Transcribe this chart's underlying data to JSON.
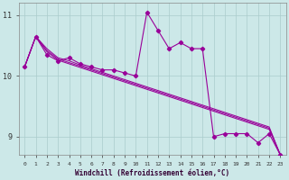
{
  "xlabel": "Windchill (Refroidissement éolien,°C)",
  "background_color": "#cce8e8",
  "line_color": "#990099",
  "grid_color": "#aacccc",
  "x": [
    0,
    1,
    2,
    3,
    4,
    5,
    6,
    7,
    8,
    9,
    10,
    11,
    12,
    13,
    14,
    15,
    16,
    17,
    18,
    19,
    20,
    21,
    22,
    23
  ],
  "y_main": [
    10.15,
    10.65,
    10.35,
    10.25,
    10.3,
    10.2,
    10.15,
    10.1,
    10.1,
    10.05,
    10.0,
    11.05,
    10.75,
    10.45,
    10.55,
    10.45,
    10.45,
    9.0,
    9.05,
    9.05,
    9.05,
    8.9,
    9.05,
    8.7
  ],
  "y_line1": [
    10.15,
    10.65,
    10.45,
    10.3,
    10.25,
    10.18,
    10.12,
    10.06,
    10.0,
    9.94,
    9.88,
    9.82,
    9.76,
    9.7,
    9.64,
    9.58,
    9.52,
    9.46,
    9.4,
    9.34,
    9.28,
    9.22,
    9.16,
    8.7
  ],
  "y_line2": [
    10.15,
    10.65,
    10.42,
    10.28,
    10.22,
    10.16,
    10.1,
    10.04,
    9.98,
    9.92,
    9.86,
    9.8,
    9.74,
    9.68,
    9.62,
    9.56,
    9.5,
    9.44,
    9.38,
    9.32,
    9.26,
    9.2,
    9.14,
    8.7
  ],
  "y_line3": [
    10.15,
    10.65,
    10.4,
    10.26,
    10.2,
    10.14,
    10.08,
    10.02,
    9.96,
    9.9,
    9.84,
    9.78,
    9.72,
    9.66,
    9.6,
    9.54,
    9.48,
    9.42,
    9.36,
    9.3,
    9.24,
    9.18,
    9.12,
    8.7
  ],
  "ylim": [
    8.7,
    11.2
  ],
  "yticks": [
    9,
    10,
    11
  ],
  "xticks": [
    0,
    1,
    2,
    3,
    4,
    5,
    6,
    7,
    8,
    9,
    10,
    11,
    12,
    13,
    14,
    15,
    16,
    17,
    18,
    19,
    20,
    21,
    22,
    23
  ]
}
